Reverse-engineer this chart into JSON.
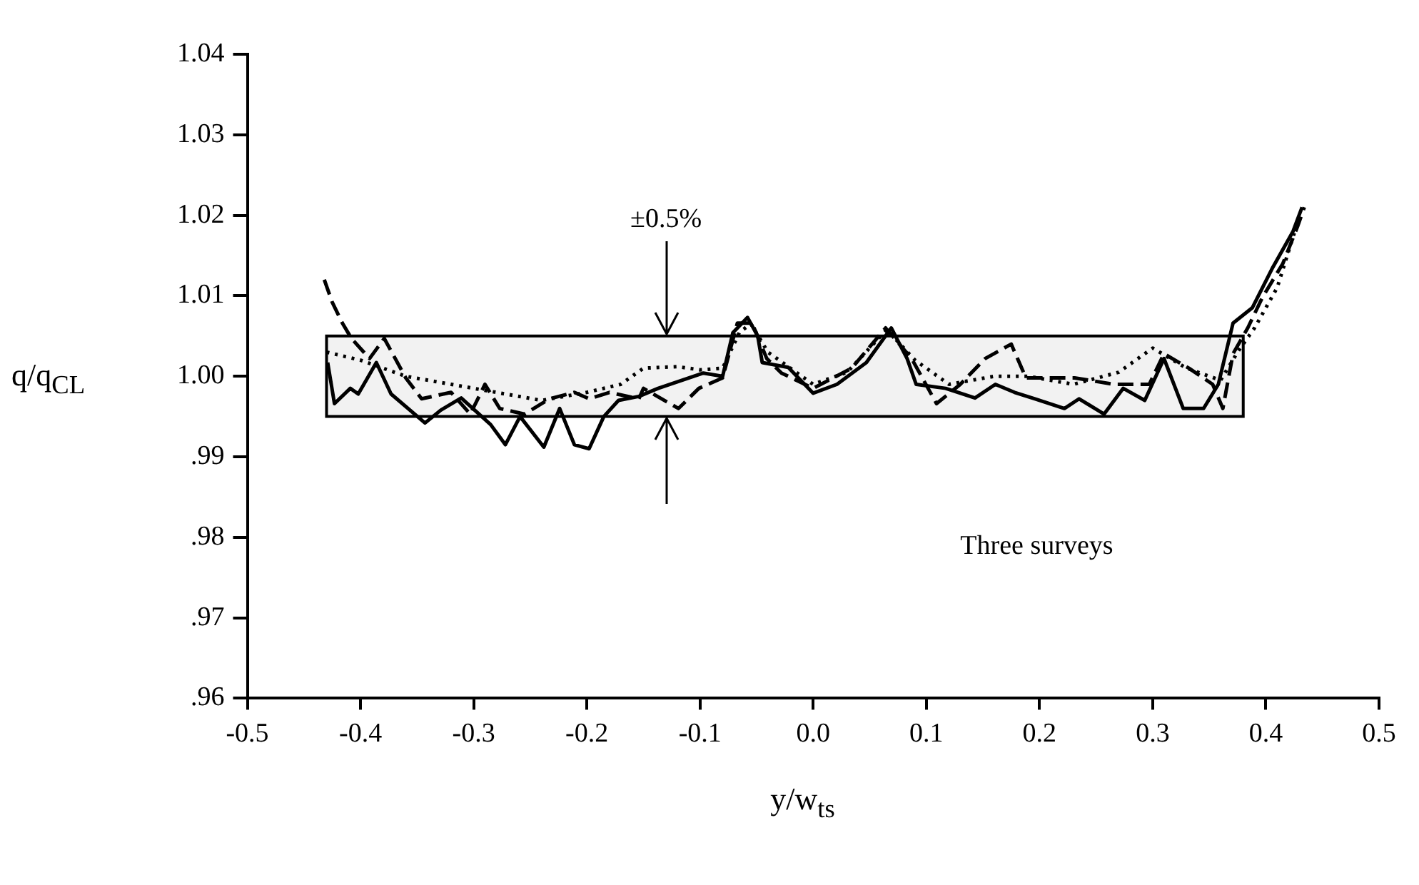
{
  "chart_data": {
    "type": "line",
    "xlabel": "y/w$_{ts}$",
    "ylabel": "q/q$_{CL}$",
    "xlim": [
      -0.5,
      0.5
    ],
    "xticks": [
      -0.5,
      -0.4,
      -0.3,
      -0.2,
      -0.1,
      {
        "value": 0,
        "label": "0.0"
      },
      0.1,
      0.2,
      0.3,
      0.4,
      0.5
    ],
    "ylim": [
      0.96,
      1.04
    ],
    "yticks": [
      {
        "value": 0.96,
        "label": ".96"
      },
      {
        "value": 0.97,
        "label": ".97"
      },
      {
        "value": 0.98,
        "label": ".98"
      },
      {
        "value": 0.99,
        "label": ".99"
      },
      {
        "value": 1,
        "label": "1.00"
      },
      1.01,
      1.02,
      1.03,
      1.04
    ],
    "grid": false,
    "legend": false,
    "marker": "none",
    "bands": [
      {
        "axis": "y",
        "from": 0.995,
        "to": 1.005,
        "color": "#000000"
      }
    ],
    "annotations": [
      {
        "text": "±0.5%",
        "x": -0.13,
        "y": 1.005
      },
      "Three surveys"
    ],
    "series": [
      {
        "color": "#000000",
        "line_style": "solid",
        "x": [
          -0.429,
          -0.423,
          -0.409,
          -0.402,
          -0.386,
          -0.373,
          -0.343,
          -0.329,
          -0.311,
          -0.285,
          -0.272,
          -0.259,
          -0.238,
          -0.224,
          -0.211,
          -0.198,
          -0.185,
          -0.172,
          -0.154,
          -0.137,
          -0.097,
          -0.08,
          -0.071,
          -0.058,
          -0.049,
          -0.045,
          -0.022,
          0,
          0.021,
          0.047,
          0.069,
          0.083,
          0.091,
          0.117,
          0.143,
          0.161,
          0.178,
          0.196,
          0.222,
          0.235,
          0.257,
          0.274,
          0.293,
          0.31,
          0.327,
          0.345,
          0.358,
          0.371,
          0.388,
          0.406,
          0.424,
          0.432
        ],
        "values": [
          1.0017,
          0.9966,
          0.9985,
          0.9978,
          1.0017,
          0.9978,
          0.9942,
          0.9958,
          0.9973,
          0.994,
          0.9915,
          0.995,
          0.9912,
          0.996,
          0.9915,
          0.991,
          0.995,
          0.997,
          0.9975,
          0.9985,
          1.0004,
          1.0,
          1.0054,
          1.0073,
          1.005,
          1.0017,
          1.0011,
          0.9979,
          0.999,
          1.0017,
          1.006,
          1.0022,
          0.999,
          0.9985,
          0.9973,
          0.999,
          0.998,
          0.9972,
          0.996,
          0.9972,
          0.9953,
          0.9985,
          0.997,
          1.0022,
          0.996,
          0.996,
          0.999,
          1.0066,
          1.0085,
          1.0135,
          1.018,
          1.021
        ]
      },
      {
        "color": "#000000",
        "line_style": "dashed",
        "x": [
          -0.432,
          -0.425,
          -0.416,
          -0.408,
          -0.392,
          -0.379,
          -0.36,
          -0.346,
          -0.32,
          -0.303,
          -0.29,
          -0.277,
          -0.255,
          -0.233,
          -0.211,
          -0.198,
          -0.18,
          -0.154,
          -0.15,
          -0.119,
          -0.101,
          -0.08,
          -0.067,
          -0.054,
          -0.041,
          -0.028,
          0,
          0.034,
          0.064,
          0.087,
          0.109,
          0.13,
          0.152,
          0.175,
          0.188,
          0.196,
          0.231,
          0.266,
          0.297,
          0.31,
          0.332,
          0.353,
          0.362,
          0.371,
          0.384,
          0.397,
          0.415,
          0.428,
          0.434
        ],
        "values": [
          1.012,
          1.0092,
          1.0066,
          1.0047,
          1.0022,
          1.0047,
          0.9998,
          0.9972,
          0.998,
          0.9953,
          0.999,
          0.996,
          0.9953,
          0.9972,
          0.998,
          0.9972,
          0.998,
          0.9972,
          0.9985,
          0.996,
          0.9985,
          0.9998,
          1.0066,
          1.0066,
          1.0022,
          1.0004,
          0.9985,
          1.001,
          1.006,
          1.0022,
          0.9966,
          0.999,
          1.0022,
          1.004,
          0.9998,
          0.9998,
          0.9998,
          0.999,
          0.999,
          1.0028,
          1.001,
          0.999,
          0.996,
          1.0028,
          1.006,
          1.0098,
          1.014,
          1.0186,
          1.021
        ]
      },
      {
        "color": "#000000",
        "line_style": "dotted",
        "x": [
          -0.43,
          -0.4,
          -0.36,
          -0.32,
          -0.28,
          -0.24,
          -0.2,
          -0.17,
          -0.15,
          -0.12,
          -0.1,
          -0.08,
          -0.065,
          -0.055,
          -0.04,
          -0.02,
          0,
          0.03,
          0.065,
          0.09,
          0.12,
          0.16,
          0.19,
          0.23,
          0.27,
          0.3,
          0.33,
          0.36,
          0.375,
          0.39,
          0.41,
          0.43
        ],
        "values": [
          1.003,
          1.002,
          1.0,
          0.999,
          0.998,
          0.997,
          0.998,
          0.999,
          1.001,
          1.0012,
          1.0008,
          1.001,
          1.0055,
          1.0065,
          1.003,
          1.001,
          0.999,
          1.0005,
          1.0058,
          1.002,
          0.999,
          1.0,
          1.0,
          0.999,
          1.0005,
          1.0035,
          1.001,
          0.9995,
          1.003,
          1.006,
          1.011,
          1.02
        ]
      }
    ]
  }
}
